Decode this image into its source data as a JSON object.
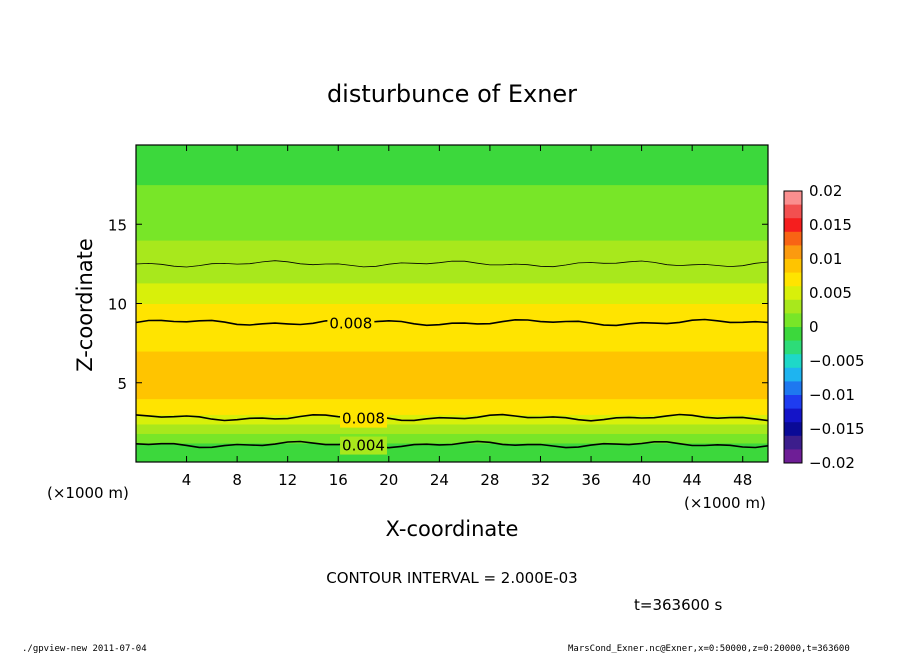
{
  "chart_data": {
    "type": "heatmap",
    "title": "disturbunce of Exner",
    "xlabel": "X-coordinate",
    "ylabel": "Z-coordinate",
    "x_unit_left": "(×1000 m)",
    "x_unit_right": "(×1000 m)",
    "xlim": [
      0,
      50
    ],
    "ylim": [
      0,
      20
    ],
    "x_ticks": [
      4,
      8,
      12,
      16,
      20,
      24,
      28,
      32,
      36,
      40,
      44,
      48
    ],
    "y_ticks": [
      5,
      10,
      15
    ],
    "colorbar": {
      "min": -0.02,
      "max": 0.02,
      "labels": [
        "0.02",
        "0.015",
        "0.01",
        "0.005",
        "0",
        "−0.005",
        "−0.01",
        "−0.015",
        "−0.02"
      ],
      "colors": [
        "#fa8f8f",
        "#f25050",
        "#f51e1e",
        "#f86414",
        "#fb9a0f",
        "#ffc400",
        "#ffe400",
        "#d8f00a",
        "#a8e81c",
        "#78e628",
        "#3cd83c",
        "#2ddc78",
        "#1ed8c8",
        "#1eb4f0",
        "#1e78f0",
        "#1e3cf0",
        "#1414c8",
        "#0a0a96",
        "#3c1e8c",
        "#6e1e96"
      ]
    },
    "z_bands": [
      {
        "z_from": 0,
        "z_to": 0.6,
        "value": -0.002
      },
      {
        "z_from": 0.6,
        "z_to": 1.2,
        "value": 0.0
      },
      {
        "z_from": 1.2,
        "z_to": 1.8,
        "value": 0.002
      },
      {
        "z_from": 1.8,
        "z_to": 2.4,
        "value": 0.004
      },
      {
        "z_from": 2.4,
        "z_to": 3.0,
        "value": 0.006
      },
      {
        "z_from": 3.0,
        "z_to": 4.0,
        "value": 0.008
      },
      {
        "z_from": 4.0,
        "z_to": 7.0,
        "value": 0.0095
      },
      {
        "z_from": 7.0,
        "z_to": 8.8,
        "value": 0.008
      },
      {
        "z_from": 8.8,
        "z_to": 10.0,
        "value": 0.0065
      },
      {
        "z_from": 10.0,
        "z_to": 11.3,
        "value": 0.005
      },
      {
        "z_from": 11.3,
        "z_to": 12.6,
        "value": 0.004
      },
      {
        "z_from": 12.6,
        "z_to": 14.0,
        "value": 0.003
      },
      {
        "z_from": 14.0,
        "z_to": 15.5,
        "value": 0.002
      },
      {
        "z_from": 15.5,
        "z_to": 17.5,
        "value": 0.001
      },
      {
        "z_from": 17.5,
        "z_to": 20.0,
        "value": 0.0
      }
    ],
    "contours": [
      {
        "value": 0.008,
        "z": 8.8,
        "label": "0.008",
        "label_x": 17
      },
      {
        "value": 0.008,
        "z": 2.8,
        "label": "0.008",
        "label_x": 18
      },
      {
        "value": 0.004,
        "z": 1.1,
        "label": "0.004",
        "label_x": 18
      },
      {
        "value": 0.002,
        "z": 12.5,
        "label": "",
        "label_x": 0
      }
    ],
    "annotations": {
      "contour_interval": "CONTOUR INTERVAL = 2.000E-03",
      "time": "t=363600 s"
    }
  },
  "footer": {
    "left": "./gpview-new   2011-07-04",
    "right": "MarsCond_Exner.nc@Exner,x=0:50000,z=0:20000,t=363600"
  }
}
